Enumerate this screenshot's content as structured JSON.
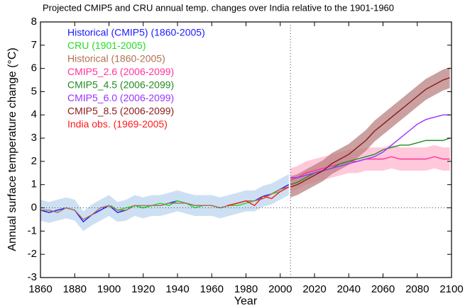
{
  "chart_data": {
    "type": "line",
    "title": "Projected CMIP5 and CRU annual temp. changes over India relative to the 1901-1960",
    "x_label": "Year",
    "y_label": "Annual surface temperature change (°C)",
    "xlim": [
      1860,
      2100
    ],
    "xticks": [
      1860,
      1880,
      1900,
      1920,
      1940,
      1960,
      1980,
      2000,
      2020,
      2040,
      2060,
      2080,
      2100
    ],
    "ylim": [
      -3,
      8
    ],
    "yticks": [
      -3,
      -2,
      -1,
      0,
      1,
      2,
      3,
      4,
      5,
      6,
      7,
      8
    ],
    "vline": 2006,
    "hline": 0,
    "series": [
      {
        "name": "Historical (CMIP5) (1860-2005)",
        "color": "#1a1aff",
        "band_color": "#bcd6ef",
        "x": [
          1860,
          1865,
          1870,
          1875,
          1880,
          1885,
          1890,
          1895,
          1900,
          1905,
          1910,
          1915,
          1920,
          1925,
          1930,
          1935,
          1940,
          1945,
          1950,
          1955,
          1960,
          1965,
          1970,
          1975,
          1980,
          1985,
          1990,
          1995,
          2000,
          2005
        ],
        "values": [
          -0.1,
          -0.2,
          -0.1,
          0,
          -0.1,
          -0.6,
          -0.3,
          -0.1,
          0.1,
          -0.2,
          -0.1,
          0.1,
          0,
          0.1,
          0.1,
          0.2,
          0.3,
          0.2,
          0.1,
          0.1,
          0.1,
          0,
          0.1,
          0.2,
          0.3,
          0.3,
          0.5,
          0.6,
          0.8,
          1.0
        ],
        "lower": [
          -0.55,
          -0.65,
          -0.55,
          -0.45,
          -0.55,
          -1.0,
          -0.75,
          -0.55,
          -0.35,
          -0.6,
          -0.55,
          -0.35,
          -0.45,
          -0.35,
          -0.35,
          -0.25,
          -0.15,
          -0.25,
          -0.35,
          -0.35,
          -0.35,
          -0.45,
          -0.35,
          -0.25,
          -0.15,
          -0.15,
          0.05,
          0.15,
          0.35,
          0.55
        ],
        "upper": [
          0.35,
          0.25,
          0.35,
          0.45,
          0.35,
          -0.15,
          0.15,
          0.35,
          0.55,
          0.25,
          0.35,
          0.55,
          0.45,
          0.55,
          0.55,
          0.65,
          0.75,
          0.65,
          0.55,
          0.55,
          0.55,
          0.45,
          0.55,
          0.65,
          0.75,
          0.75,
          0.95,
          1.05,
          1.25,
          1.45
        ]
      },
      {
        "name": "CRU (1901-2005)",
        "color": "#22dd22",
        "x": [
          1901,
          1905,
          1910,
          1915,
          1920,
          1925,
          1930,
          1935,
          1940,
          1945,
          1950,
          1955,
          1960,
          1965,
          1970,
          1975,
          1980,
          1985,
          1990,
          1995,
          2000,
          2005
        ],
        "values": [
          0.1,
          -0.1,
          0,
          0.1,
          0,
          0.1,
          0.2,
          0.1,
          0.3,
          0.2,
          0,
          0.1,
          0.1,
          0,
          0.1,
          0.1,
          0.2,
          0.3,
          0.4,
          0.6,
          0.7,
          0.9
        ]
      },
      {
        "name": "Historical (1860-2005)",
        "color": "#b07050",
        "x": [
          1860,
          1865,
          1870,
          1875,
          1880,
          1885,
          1890,
          1895,
          1900,
          1905,
          1910,
          1915,
          1920,
          1925,
          1930,
          1935,
          1940,
          1945,
          1950,
          1955,
          1960,
          1965,
          1970,
          1975,
          1980,
          1985,
          1990,
          1995,
          2000,
          2005
        ],
        "values": [
          -0.1,
          -0.1,
          -0.2,
          0,
          -0.1,
          -0.5,
          -0.3,
          0,
          0.1,
          -0.1,
          -0.1,
          0.1,
          0.1,
          0.1,
          0.1,
          0.2,
          0.2,
          0.2,
          0.1,
          0.1,
          0.1,
          0,
          0.1,
          0.2,
          0.3,
          0.3,
          0.4,
          0.6,
          0.8,
          0.9
        ]
      },
      {
        "name": "CMIP5_2.6 (2006-2099)",
        "color": "#ff3399",
        "band_color": "#ffb6cf",
        "x": [
          2006,
          2010,
          2015,
          2020,
          2025,
          2030,
          2035,
          2040,
          2045,
          2050,
          2055,
          2060,
          2065,
          2070,
          2075,
          2080,
          2085,
          2090,
          2095,
          2099
        ],
        "values": [
          1.2,
          1.3,
          1.5,
          1.6,
          1.7,
          1.8,
          1.9,
          2.0,
          2.0,
          2.1,
          2.1,
          2.1,
          2.2,
          2.1,
          2.1,
          2.1,
          2.1,
          2.2,
          2.1,
          2.1
        ],
        "lower": [
          0.7,
          0.8,
          1.0,
          1.1,
          1.2,
          1.3,
          1.4,
          1.5,
          1.5,
          1.6,
          1.6,
          1.6,
          1.7,
          1.6,
          1.6,
          1.6,
          1.6,
          1.7,
          1.6,
          1.6
        ],
        "upper": [
          1.7,
          1.8,
          2.0,
          2.1,
          2.2,
          2.3,
          2.4,
          2.5,
          2.5,
          2.6,
          2.6,
          2.6,
          2.7,
          2.6,
          2.6,
          2.6,
          2.6,
          2.7,
          2.6,
          2.6
        ]
      },
      {
        "name": "CMIP5_4.5 (2006-2099)",
        "color": "#228b22",
        "x": [
          2006,
          2010,
          2015,
          2020,
          2025,
          2030,
          2035,
          2040,
          2045,
          2050,
          2055,
          2060,
          2065,
          2070,
          2075,
          2080,
          2085,
          2090,
          2095,
          2099
        ],
        "values": [
          1.0,
          1.1,
          1.3,
          1.5,
          1.6,
          1.7,
          1.9,
          2.0,
          2.1,
          2.2,
          2.3,
          2.5,
          2.6,
          2.7,
          2.7,
          2.8,
          2.9,
          2.9,
          2.9,
          3.0
        ]
      },
      {
        "name": "CMIP5_6.0 (2006-2099)",
        "color": "#9933ff",
        "x": [
          2006,
          2010,
          2015,
          2020,
          2025,
          2030,
          2035,
          2040,
          2045,
          2050,
          2055,
          2060,
          2065,
          2070,
          2075,
          2080,
          2085,
          2090,
          2095,
          2099
        ],
        "values": [
          1.3,
          1.3,
          1.4,
          1.5,
          1.6,
          1.7,
          1.8,
          1.9,
          2.0,
          2.1,
          2.2,
          2.4,
          2.7,
          3.0,
          3.3,
          3.6,
          3.8,
          3.9,
          4.0,
          4.0
        ]
      },
      {
        "name": "CMIP5_8.5 (2006-2099)",
        "color": "#8b1a1a",
        "band_color": "#b98080",
        "x": [
          2006,
          2010,
          2015,
          2020,
          2025,
          2030,
          2035,
          2040,
          2045,
          2050,
          2055,
          2060,
          2065,
          2070,
          2075,
          2080,
          2085,
          2090,
          2095,
          2099
        ],
        "values": [
          0.9,
          1.0,
          1.2,
          1.4,
          1.6,
          1.9,
          2.1,
          2.3,
          2.6,
          2.9,
          3.3,
          3.6,
          3.9,
          4.2,
          4.5,
          4.8,
          5.1,
          5.3,
          5.5,
          5.6
        ],
        "lower": [
          0.45,
          0.55,
          0.75,
          0.95,
          1.15,
          1.45,
          1.65,
          1.85,
          2.15,
          2.45,
          2.85,
          3.15,
          3.45,
          3.75,
          4.05,
          4.35,
          4.65,
          4.85,
          5.05,
          5.15
        ],
        "upper": [
          1.35,
          1.45,
          1.65,
          1.85,
          2.05,
          2.35,
          2.55,
          2.75,
          3.05,
          3.35,
          3.75,
          4.05,
          4.35,
          4.65,
          4.95,
          5.25,
          5.55,
          5.75,
          5.95,
          6.05
        ]
      },
      {
        "name": "India obs. (1969-2005)",
        "color": "#ff1a1a",
        "x": [
          1969,
          1975,
          1980,
          1985,
          1990,
          1995,
          2000,
          2005
        ],
        "values": [
          0.1,
          0.2,
          0.3,
          0.1,
          0.5,
          0.4,
          0.7,
          0.9
        ]
      }
    ]
  }
}
